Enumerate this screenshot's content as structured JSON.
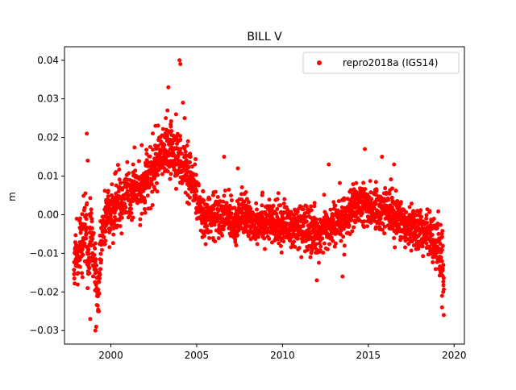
{
  "chart_data": {
    "type": "scatter",
    "title": "BILL V",
    "xlabel": "",
    "ylabel": "m",
    "xlim": [
      1997.3,
      2020.6
    ],
    "ylim": [
      -0.0335,
      0.0435
    ],
    "xticks": [
      2000,
      2005,
      2010,
      2015,
      2020
    ],
    "xtick_labels": [
      "2000",
      "2005",
      "2010",
      "2015",
      "2020"
    ],
    "yticks": [
      -0.03,
      -0.02,
      -0.01,
      0.0,
      0.01,
      0.02,
      0.03,
      0.04
    ],
    "ytick_labels": [
      "−0.03",
      "−0.02",
      "−0.01",
      "0.00",
      "0.01",
      "0.02",
      "0.03",
      "0.04"
    ],
    "grid": false,
    "legend": {
      "position": "top-right",
      "entries": [
        {
          "label": "repro2018a (IGS14)",
          "color": "#ff0000",
          "marker": "circle"
        }
      ]
    },
    "series": [
      {
        "name": "repro2018a (IGS14)",
        "color": "#ff0000",
        "x": [
          1997.85,
          1997.95,
          1998.05,
          1998.15,
          1998.25,
          1998.35,
          1998.45,
          1998.55,
          1998.65,
          1998.75,
          1998.85,
          1998.95,
          1999.05,
          1999.15,
          1999.25,
          1999.35,
          1999.45,
          1999.55,
          1999.65,
          1999.75,
          1999.85,
          1999.95,
          2000.1,
          2000.3,
          2000.5,
          2000.7,
          2000.9,
          2001.1,
          2001.3,
          2001.5,
          2001.7,
          2001.9,
          2002.1,
          2002.3,
          2002.5,
          2002.7,
          2002.9,
          2003.1,
          2003.3,
          2003.5,
          2003.7,
          2003.9,
          2004.1,
          2004.3,
          2004.5,
          2004.7,
          2004.9,
          2005.1,
          2005.3,
          2005.6,
          2006.0,
          2006.4,
          2006.8,
          2007.2,
          2007.6,
          2008.0,
          2008.4,
          2008.8,
          2009.2,
          2009.6,
          2010.0,
          2010.4,
          2010.8,
          2011.2,
          2011.6,
          2012.0,
          2012.4,
          2012.8,
          2013.2,
          2013.6,
          2014.0,
          2014.4,
          2014.8,
          2015.2,
          2015.6,
          2016.0,
          2016.4,
          2016.8,
          2017.2,
          2017.6,
          2018.0,
          2018.4,
          2018.8,
          2019.0,
          2019.1,
          2019.2,
          2019.3,
          2019.35,
          2019.4
        ],
        "y": [
          -0.012,
          -0.01,
          -0.013,
          -0.008,
          -0.006,
          -0.009,
          -0.004,
          -0.005,
          -0.011,
          -0.007,
          -0.003,
          -0.01,
          -0.013,
          -0.018,
          -0.022,
          -0.012,
          -0.006,
          -0.002,
          -0.004,
          0.0,
          0.002,
          -0.001,
          0.001,
          0.003,
          0.004,
          0.002,
          0.005,
          0.004,
          0.006,
          0.007,
          0.005,
          0.008,
          0.009,
          0.01,
          0.012,
          0.013,
          0.014,
          0.015,
          0.016,
          0.017,
          0.016,
          0.015,
          0.014,
          0.012,
          0.01,
          0.008,
          0.006,
          0.003,
          0.001,
          -0.001,
          0.0,
          -0.001,
          0.0,
          -0.002,
          0.0,
          -0.001,
          -0.002,
          -0.001,
          -0.002,
          -0.003,
          -0.002,
          -0.003,
          -0.004,
          -0.003,
          -0.004,
          -0.005,
          -0.004,
          -0.003,
          -0.002,
          -0.001,
          0.001,
          0.002,
          0.003,
          0.002,
          0.001,
          0.002,
          0.0,
          -0.001,
          -0.002,
          -0.003,
          -0.004,
          -0.005,
          -0.006,
          -0.007,
          -0.008,
          -0.01,
          -0.012,
          -0.014,
          -0.015
        ],
        "spread": [
          0.006,
          0.006,
          0.007,
          0.007,
          0.008,
          0.008,
          0.008,
          0.008,
          0.008,
          0.008,
          0.008,
          0.008,
          0.008,
          0.008,
          0.008,
          0.008,
          0.007,
          0.007,
          0.007,
          0.006,
          0.006,
          0.006,
          0.006,
          0.006,
          0.006,
          0.006,
          0.006,
          0.006,
          0.006,
          0.006,
          0.006,
          0.006,
          0.006,
          0.006,
          0.006,
          0.006,
          0.006,
          0.006,
          0.006,
          0.006,
          0.006,
          0.006,
          0.006,
          0.006,
          0.006,
          0.006,
          0.006,
          0.005,
          0.005,
          0.005,
          0.005,
          0.005,
          0.005,
          0.005,
          0.005,
          0.005,
          0.005,
          0.005,
          0.005,
          0.005,
          0.005,
          0.005,
          0.005,
          0.005,
          0.005,
          0.005,
          0.005,
          0.005,
          0.005,
          0.005,
          0.005,
          0.005,
          0.005,
          0.005,
          0.005,
          0.005,
          0.005,
          0.005,
          0.005,
          0.005,
          0.005,
          0.005,
          0.005,
          0.005,
          0.006,
          0.006,
          0.006,
          0.006,
          0.006
        ],
        "outliers": [
          [
            1998.6,
            0.021
          ],
          [
            1998.65,
            0.014
          ],
          [
            1998.8,
            -0.027
          ],
          [
            1999.1,
            -0.03
          ],
          [
            1999.15,
            -0.029
          ],
          [
            2001.3,
            0.013
          ],
          [
            2001.8,
            0.018
          ],
          [
            2002.6,
            0.023
          ],
          [
            2003.2,
            0.025
          ],
          [
            2003.3,
            0.027
          ],
          [
            2003.35,
            0.033
          ],
          [
            2003.8,
            0.026
          ],
          [
            2004.0,
            0.04
          ],
          [
            2004.05,
            0.039
          ],
          [
            2004.2,
            0.029
          ],
          [
            2004.3,
            0.025
          ],
          [
            2006.6,
            0.015
          ],
          [
            2007.4,
            0.012
          ],
          [
            2011.1,
            -0.011
          ],
          [
            2012.0,
            -0.017
          ],
          [
            2012.7,
            0.013
          ],
          [
            2013.5,
            -0.016
          ],
          [
            2014.8,
            0.017
          ],
          [
            2015.8,
            0.015
          ],
          [
            2016.5,
            0.013
          ],
          [
            2019.3,
            -0.024
          ],
          [
            2019.4,
            -0.026
          ],
          [
            2019.3,
            -0.021
          ]
        ]
      }
    ]
  }
}
